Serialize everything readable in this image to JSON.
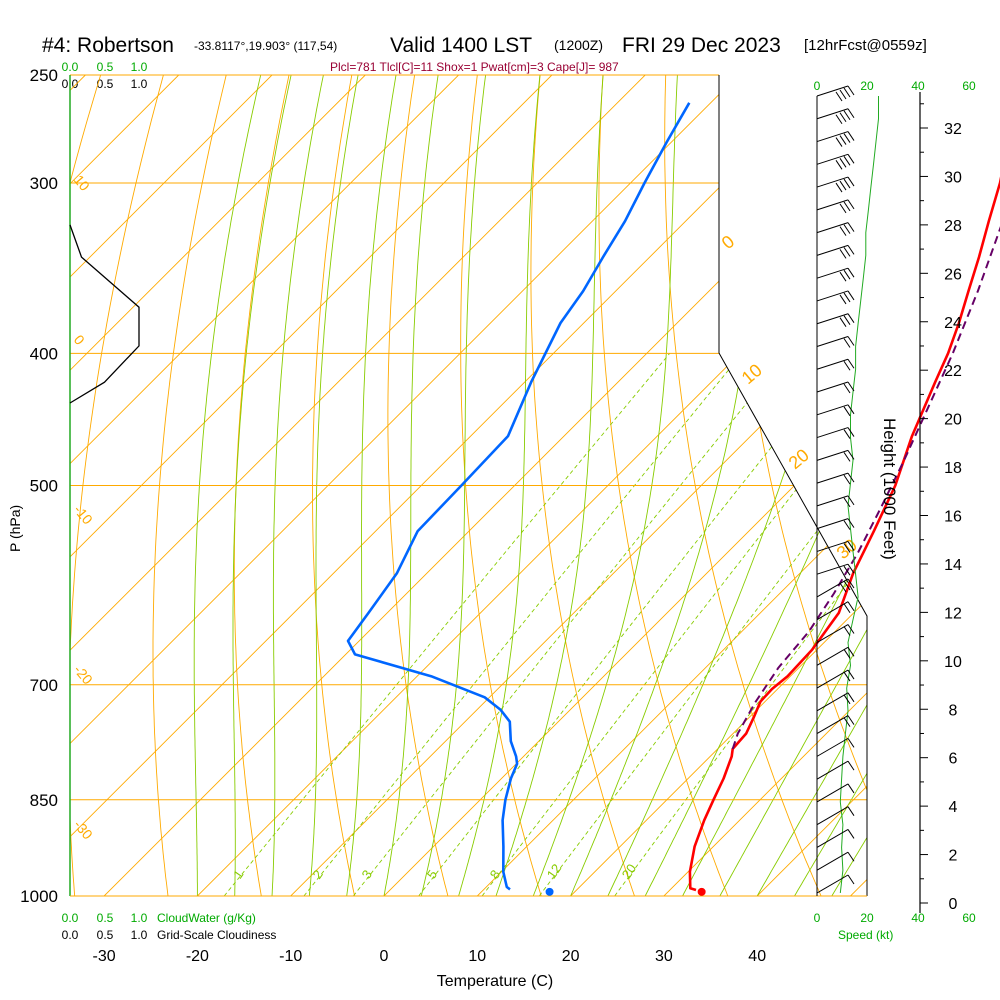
{
  "header": {
    "station": "#4: Robertson",
    "coords": "-33.8117°,19.903° (117,54)",
    "valid": "Valid 1400 LST",
    "zulu": "(1200Z)",
    "date": "FRI 29 Dec 2023",
    "forecast": "[12hrFcst@0559z]",
    "params": "Plcl=781 Tlcl[C]=11 Shox=1 Pwat[cm]=3 Cape[J]= 987"
  },
  "colors": {
    "isotherm": "#ffaa00",
    "isobar": "#ffaa00",
    "dry_adiabat": "#ffaa00",
    "moist_adiabat": "#88cc00",
    "mixing_ratio": "#88cc00",
    "temperature": "#ff0000",
    "dewpoint": "#0066ff",
    "parcel": "#660066",
    "green_text": "#00aa00",
    "params_text": "#990033",
    "cloud": "#000000"
  },
  "chart_data": {
    "type": "line",
    "title": "#4: Robertson",
    "xlabel": "Temperature (C)",
    "ylabel": "P (hPa)",
    "y2label": "Height (1000 Feet)",
    "x_ticks": [
      -30,
      -20,
      -10,
      0,
      10,
      20,
      30,
      40
    ],
    "x_tick_labels": [
      "-30",
      "-20",
      "-10",
      "0",
      "10",
      "20",
      "30",
      "40"
    ],
    "p_ticks": [
      250,
      300,
      400,
      500,
      700,
      850,
      1000
    ],
    "p_tick_labels": [
      "250",
      "300",
      "400",
      "500",
      "700",
      "850",
      "1000"
    ],
    "height_ticks": [
      0,
      2,
      4,
      6,
      8,
      10,
      12,
      14,
      16,
      18,
      20,
      22,
      24,
      26,
      28,
      30,
      32
    ],
    "height_tick_labels": [
      "0",
      "2",
      "4",
      "6",
      "8",
      "10",
      "12",
      "14",
      "16",
      "18",
      "20",
      "22",
      "24",
      "26",
      "28",
      "30",
      "32"
    ],
    "mixing_ratio_labels": [
      "1",
      "2",
      "3",
      "5",
      "8",
      "12",
      "20"
    ],
    "dry_adiabat_labels": [
      "10",
      "0",
      "-10",
      "-20",
      "-30"
    ],
    "moist_adiabat_labels": [
      "0",
      "10",
      "20",
      "30"
    ],
    "cloud_axis_top": {
      "cloudwater": [
        "0.0",
        "0.5",
        "1.0"
      ],
      "cloudiness": [
        "0.0",
        "0.5",
        "1.0"
      ]
    },
    "cloud_axis_bottom": {
      "cloudwater": [
        "0.0",
        "0.5",
        "1.0"
      ],
      "cloudiness": [
        "0.0",
        "0.5",
        "1.0"
      ],
      "cloudwater_label": "CloudWater (g/Kg)",
      "cloudiness_label": "Grid-Scale Cloudiness"
    },
    "speed_axis": {
      "ticks": [
        "0",
        "20",
        "40",
        "60"
      ],
      "label": "Speed (kt)"
    },
    "series": [
      {
        "name": "temperature",
        "color": "#ff0000",
        "p": [
          990,
          987,
          960,
          920,
          880,
          850,
          820,
          790,
          780,
          760,
          740,
          720,
          705,
          690,
          660,
          620,
          580,
          540,
          500,
          460,
          420,
          400,
          380,
          360,
          340,
          320,
          300,
          280,
          262
        ],
        "t": [
          32.8,
          32,
          30.2,
          28,
          26.2,
          25,
          23.8,
          22.3,
          21.6,
          21.4,
          20.5,
          19.5,
          19.4,
          19.7,
          19.5,
          18.4,
          15.7,
          13.4,
          10.8,
          7.3,
          4,
          2.3,
          0.2,
          -2.2,
          -4.7,
          -7.5,
          -10.4,
          -13.9,
          -17
        ]
      },
      {
        "name": "dewpoint",
        "color": "#0066ff",
        "p": [
          989,
          985,
          960,
          920,
          880,
          850,
          820,
          800,
          790,
          770,
          745,
          730,
          715,
          690,
          665,
          650,
          620,
          580,
          540,
          500,
          460,
          420,
          380,
          360,
          340,
          320,
          300,
          280,
          262
        ],
        "t": [
          12.8,
          12.2,
          10.2,
          7.5,
          4.6,
          2.7,
          1,
          0.1,
          -0.8,
          -3,
          -5.2,
          -7.5,
          -10.5,
          -18.5,
          -29,
          -31.2,
          -32,
          -33.2,
          -35.5,
          -35.7,
          -36,
          -39.3,
          -42.5,
          -43.5,
          -45,
          -46.5,
          -48.5,
          -50.5,
          -52.3
        ]
      },
      {
        "name": "parcel",
        "color": "#660066",
        "p": [
          780,
          760,
          720,
          680,
          640,
          600,
          560,
          520,
          480,
          440,
          400,
          360,
          320,
          290,
          262
        ],
        "t": [
          21.6,
          20.5,
          19,
          17.8,
          17.2,
          15.8,
          14,
          11.7,
          9.1,
          6.1,
          2.8,
          -1.2,
          -6,
          -9.8,
          -14
        ]
      }
    ],
    "surface_points": [
      {
        "name": "surface temperature",
        "p": 993,
        "t": 33.6,
        "color": "#ff0000"
      },
      {
        "name": "surface dewpoint",
        "p": 993,
        "t": 17.3,
        "color": "#0066ff"
      }
    ],
    "cloud_profile": {
      "fraction": [
        0,
        0.1,
        0.6,
        0.6,
        0.3,
        0
      ],
      "p": [
        322,
        340,
        370,
        395,
        420,
        435
      ]
    },
    "wind_speed_kt": [
      12,
      14,
      13,
      14,
      12,
      13,
      14,
      16,
      18,
      17,
      20,
      18,
      22,
      26,
      24,
      22,
      20,
      18,
      20,
      22,
      20,
      20,
      22,
      24,
      24,
      26,
      28,
      30,
      32,
      32,
      34,
      36,
      38,
      40,
      42,
      42
    ]
  }
}
